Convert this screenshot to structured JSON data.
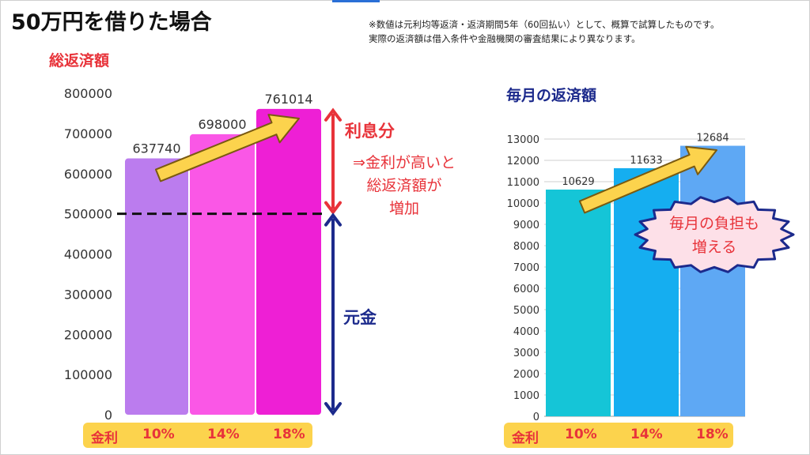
{
  "title": "50万円を借りた場合",
  "note": {
    "line1": "※数値は元利均等返済・返済期間5年（60回払い）として、概算で試算したものです。",
    "line2": "実際の返済額は借入条件や金融機関の審査結果により異なります。"
  },
  "labels": {
    "interest": "利息分",
    "principal": "元金",
    "interest_note": [
      "⇒金利が高いと",
      "総返済額が",
      "増加"
    ],
    "burst": [
      "毎月の負担も",
      "増える"
    ]
  },
  "colors": {
    "left_bars": [
      "#bb7cee",
      "#fa57e6",
      "#ee1fd5"
    ],
    "right_bars": [
      "#15c5d7",
      "#15aef0",
      "#5ea8f4"
    ],
    "rate_bar": "#fcd34d",
    "accent_red": "#e8333a",
    "accent_navy": "#1c2a8c",
    "arrow": "#fcd34d"
  },
  "chart_data": [
    {
      "type": "bar",
      "title": "総返済額",
      "categories_label": "金利",
      "categories": [
        "10%",
        "14%",
        "18%"
      ],
      "values": [
        637740,
        698000,
        761014
      ],
      "ylim": [
        0,
        800000
      ],
      "yticks": [
        "0",
        "100000",
        "200000",
        "300000",
        "400000",
        "500000",
        "600000",
        "700000",
        "800000"
      ],
      "reference_line": 500000,
      "grid": false
    },
    {
      "type": "bar",
      "title": "毎月の返済額",
      "categories_label": "金利",
      "categories": [
        "10%",
        "14%",
        "18%"
      ],
      "values": [
        10629,
        11633,
        12684
      ],
      "ylim": [
        0,
        13000
      ],
      "yticks": [
        "0",
        "1000",
        "2000",
        "3000",
        "4000",
        "5000",
        "6000",
        "7000",
        "8000",
        "9000",
        "10000",
        "11000",
        "12000",
        "13000"
      ],
      "grid": true
    }
  ]
}
